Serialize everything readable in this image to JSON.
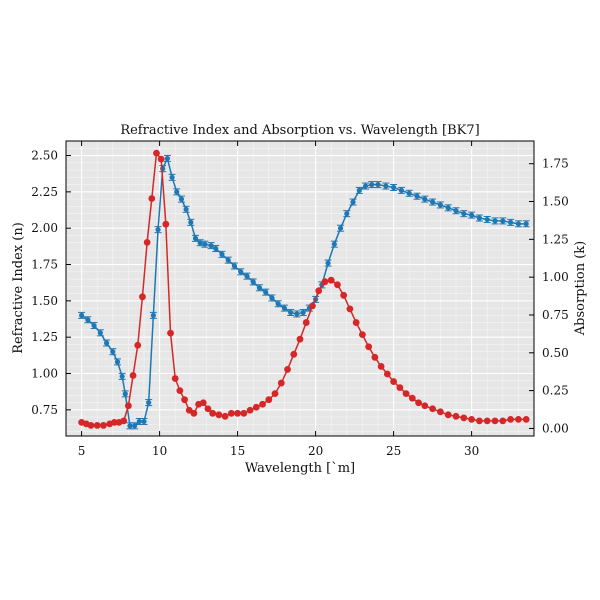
{
  "chart_data": {
    "type": "line",
    "title": "Refractive Index and Absorption vs. Wavelength [BK7]",
    "xlabel": "Wavelength [`m]",
    "ylabel_left": "Refractive Index (n)",
    "ylabel_right": "Absorption (k)",
    "xlim": [
      4.0,
      34.0
    ],
    "ylim_left": [
      0.57,
      2.6
    ],
    "ylim_right": [
      -0.05,
      1.9
    ],
    "x_ticks": [
      "5",
      "10",
      "15",
      "20",
      "25",
      "30"
    ],
    "y_left_ticks": [
      "0.75",
      "1.00",
      "1.25",
      "1.50",
      "1.75",
      "2.00",
      "2.25",
      "2.50"
    ],
    "y_right_ticks": [
      "0.00",
      "0.25",
      "0.50",
      "0.75",
      "1.00",
      "1.25",
      "1.50",
      "1.75"
    ],
    "grid": true,
    "background": "#e6e6e6",
    "series": [
      {
        "name": "",
        "axis": "left",
        "color": "#1f77b4",
        "error_bars": true,
        "points": [
          [
            5.0,
            1.4
          ],
          [
            5.4,
            1.37
          ],
          [
            5.8,
            1.33
          ],
          [
            6.2,
            1.28
          ],
          [
            6.6,
            1.21
          ],
          [
            7.0,
            1.15
          ],
          [
            7.3,
            1.08
          ],
          [
            7.6,
            0.98
          ],
          [
            7.8,
            0.86
          ],
          [
            8.1,
            0.64
          ],
          [
            8.4,
            0.64
          ],
          [
            8.7,
            0.67
          ],
          [
            9.0,
            0.67
          ],
          [
            9.3,
            0.8
          ],
          [
            9.6,
            1.4
          ],
          [
            9.9,
            1.99
          ],
          [
            10.2,
            2.41
          ],
          [
            10.5,
            2.48
          ],
          [
            10.8,
            2.35
          ],
          [
            11.1,
            2.25
          ],
          [
            11.4,
            2.2
          ],
          [
            11.7,
            2.13
          ],
          [
            12.0,
            2.04
          ],
          [
            12.3,
            1.93
          ],
          [
            12.6,
            1.9
          ],
          [
            12.9,
            1.89
          ],
          [
            13.3,
            1.88
          ],
          [
            13.6,
            1.86
          ],
          [
            14.0,
            1.82
          ],
          [
            14.4,
            1.78
          ],
          [
            14.8,
            1.74
          ],
          [
            15.2,
            1.7
          ],
          [
            15.6,
            1.67
          ],
          [
            16.0,
            1.63
          ],
          [
            16.4,
            1.59
          ],
          [
            16.8,
            1.56
          ],
          [
            17.2,
            1.52
          ],
          [
            17.6,
            1.48
          ],
          [
            18.0,
            1.45
          ],
          [
            18.4,
            1.42
          ],
          [
            18.8,
            1.41
          ],
          [
            19.2,
            1.42
          ],
          [
            19.6,
            1.45
          ],
          [
            20.0,
            1.51
          ],
          [
            20.4,
            1.61
          ],
          [
            20.8,
            1.76
          ],
          [
            21.2,
            1.89
          ],
          [
            21.6,
            2.0
          ],
          [
            22.0,
            2.1
          ],
          [
            22.4,
            2.18
          ],
          [
            22.8,
            2.26
          ],
          [
            23.2,
            2.29
          ],
          [
            23.6,
            2.3
          ],
          [
            24.0,
            2.3
          ],
          [
            24.5,
            2.29
          ],
          [
            25.0,
            2.28
          ],
          [
            25.5,
            2.26
          ],
          [
            26.0,
            2.24
          ],
          [
            26.5,
            2.22
          ],
          [
            27.0,
            2.2
          ],
          [
            27.5,
            2.18
          ],
          [
            28.0,
            2.16
          ],
          [
            28.5,
            2.14
          ],
          [
            29.0,
            2.12
          ],
          [
            29.5,
            2.1
          ],
          [
            30.0,
            2.09
          ],
          [
            30.5,
            2.07
          ],
          [
            31.0,
            2.06
          ],
          [
            31.5,
            2.05
          ],
          [
            32.0,
            2.05
          ],
          [
            32.5,
            2.04
          ],
          [
            33.0,
            2.03
          ],
          [
            33.5,
            2.03
          ]
        ]
      },
      {
        "name": "",
        "axis": "right",
        "color": "#d62728",
        "error_bars": false,
        "points": [
          [
            5.0,
            0.04
          ],
          [
            5.3,
            0.03
          ],
          [
            5.6,
            0.02
          ],
          [
            6.0,
            0.02
          ],
          [
            6.4,
            0.02
          ],
          [
            6.8,
            0.03
          ],
          [
            7.1,
            0.04
          ],
          [
            7.4,
            0.04
          ],
          [
            7.7,
            0.05
          ],
          [
            8.0,
            0.15
          ],
          [
            8.3,
            0.35
          ],
          [
            8.6,
            0.55
          ],
          [
            8.9,
            0.87
          ],
          [
            9.2,
            1.23
          ],
          [
            9.5,
            1.52
          ],
          [
            9.8,
            1.82
          ],
          [
            10.1,
            1.78
          ],
          [
            10.4,
            1.35
          ],
          [
            10.7,
            0.63
          ],
          [
            11.0,
            0.33
          ],
          [
            11.3,
            0.25
          ],
          [
            11.6,
            0.19
          ],
          [
            11.9,
            0.12
          ],
          [
            12.2,
            0.1
          ],
          [
            12.5,
            0.16
          ],
          [
            12.8,
            0.17
          ],
          [
            13.1,
            0.13
          ],
          [
            13.4,
            0.1
          ],
          [
            13.8,
            0.09
          ],
          [
            14.2,
            0.08
          ],
          [
            14.6,
            0.1
          ],
          [
            15.0,
            0.1
          ],
          [
            15.4,
            0.1
          ],
          [
            15.8,
            0.12
          ],
          [
            16.2,
            0.14
          ],
          [
            16.6,
            0.16
          ],
          [
            17.0,
            0.19
          ],
          [
            17.4,
            0.23
          ],
          [
            17.8,
            0.3
          ],
          [
            18.2,
            0.39
          ],
          [
            18.6,
            0.49
          ],
          [
            19.0,
            0.59
          ],
          [
            19.4,
            0.7
          ],
          [
            19.8,
            0.81
          ],
          [
            20.2,
            0.91
          ],
          [
            20.6,
            0.97
          ],
          [
            21.0,
            0.98
          ],
          [
            21.4,
            0.95
          ],
          [
            21.8,
            0.88
          ],
          [
            22.2,
            0.79
          ],
          [
            22.6,
            0.7
          ],
          [
            23.0,
            0.62
          ],
          [
            23.4,
            0.54
          ],
          [
            23.8,
            0.47
          ],
          [
            24.2,
            0.41
          ],
          [
            24.6,
            0.36
          ],
          [
            25.0,
            0.31
          ],
          [
            25.4,
            0.27
          ],
          [
            25.8,
            0.23
          ],
          [
            26.2,
            0.2
          ],
          [
            26.6,
            0.17
          ],
          [
            27.0,
            0.15
          ],
          [
            27.5,
            0.13
          ],
          [
            28.0,
            0.11
          ],
          [
            28.5,
            0.09
          ],
          [
            29.0,
            0.08
          ],
          [
            29.5,
            0.07
          ],
          [
            30.0,
            0.06
          ],
          [
            30.5,
            0.05
          ],
          [
            31.0,
            0.05
          ],
          [
            31.5,
            0.05
          ],
          [
            32.0,
            0.05
          ],
          [
            32.5,
            0.06
          ],
          [
            33.0,
            0.06
          ],
          [
            33.5,
            0.06
          ]
        ]
      }
    ]
  }
}
